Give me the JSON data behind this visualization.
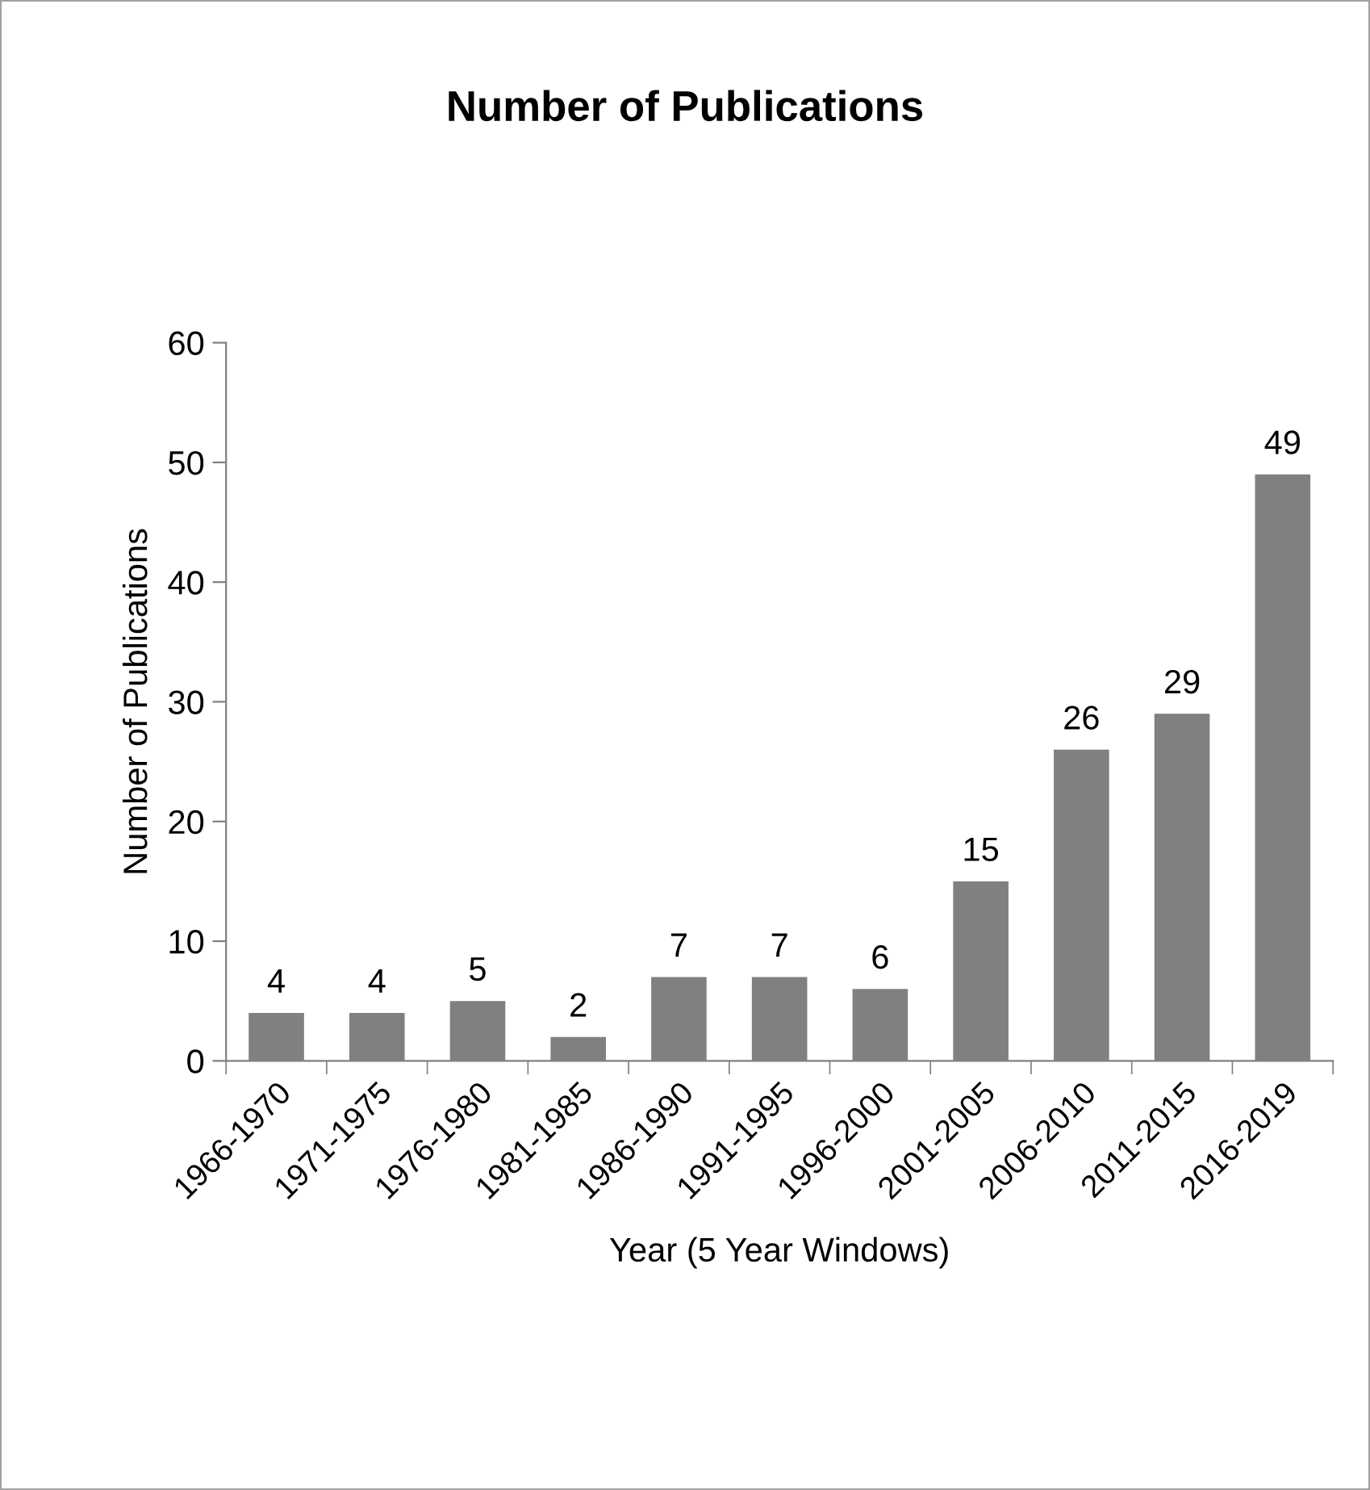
{
  "chart_data": {
    "type": "bar",
    "title": "Number of Publications",
    "xlabel": "Year (5 Year Windows)",
    "ylabel": "Number of Publications",
    "categories": [
      "1966-1970",
      "1971-1975",
      "1976-1980",
      "1981-1985",
      "1986-1990",
      "1991-1995",
      "1996-2000",
      "2001-2005",
      "2006-2010",
      "2011-2015",
      "2016-2019"
    ],
    "values": [
      4,
      4,
      5,
      2,
      7,
      7,
      6,
      15,
      26,
      29,
      49
    ],
    "color": "#808080",
    "ylim": [
      0,
      60
    ],
    "yticks": [
      0,
      10,
      20,
      30,
      40,
      50,
      60
    ],
    "data_labels": true,
    "grid": false,
    "legend": false
  }
}
